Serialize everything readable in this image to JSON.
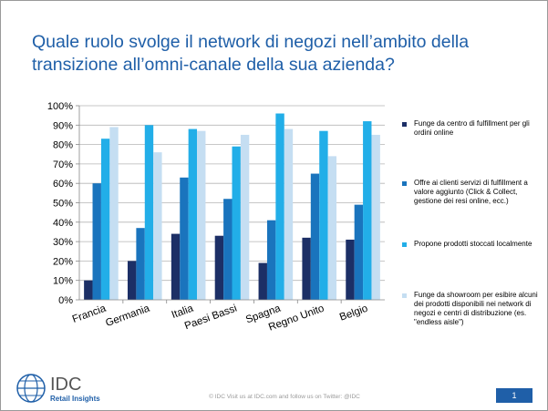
{
  "slide": {
    "title": "Quale ruolo svolge il network di negozi nell’ambito della transizione all’omni-canale della sua azienda?",
    "footer": "© IDC    Visit us at IDC.com and follow us on Twitter: @IDC",
    "page_number": "1",
    "logo": {
      "name": "IDC",
      "subtitle": "Retail Insights",
      "icon": "idc-globe-icon"
    }
  },
  "chart_data": {
    "type": "bar",
    "categories": [
      "Francia",
      "Germania",
      "Italia",
      "Paesi Bassi",
      "Spagna",
      "Regno Unito",
      "Belgio"
    ],
    "ylim": [
      0,
      100
    ],
    "yticks": [
      "0%",
      "10%",
      "20%",
      "30%",
      "40%",
      "50%",
      "60%",
      "70%",
      "80%",
      "90%",
      "100%"
    ],
    "grid": true,
    "legend_position": "right",
    "series": [
      {
        "name": "Funge da centro di fulfillment per gli ordini online",
        "color": "#1c2f66",
        "values": [
          10,
          20,
          34,
          33,
          19,
          32,
          31
        ]
      },
      {
        "name": "Offre ai clienti servizi di fulfillment a valore aggiunto (Click & Collect, gestione dei resi online, ecc.)",
        "color": "#1a74bd",
        "values": [
          60,
          37,
          63,
          52,
          41,
          65,
          49
        ]
      },
      {
        "name": "Propone prodotti stoccati localmente",
        "color": "#22aee8",
        "values": [
          83,
          90,
          88,
          79,
          96,
          87,
          92
        ]
      },
      {
        "name": "Funge da showroom per esibire alcuni dei prodotti disponibili nei network di negozi e centri di distribuzione (es. \"endless aisle\")",
        "color": "#c5def2",
        "values": [
          89,
          76,
          87,
          85,
          88,
          74,
          85
        ]
      }
    ]
  }
}
